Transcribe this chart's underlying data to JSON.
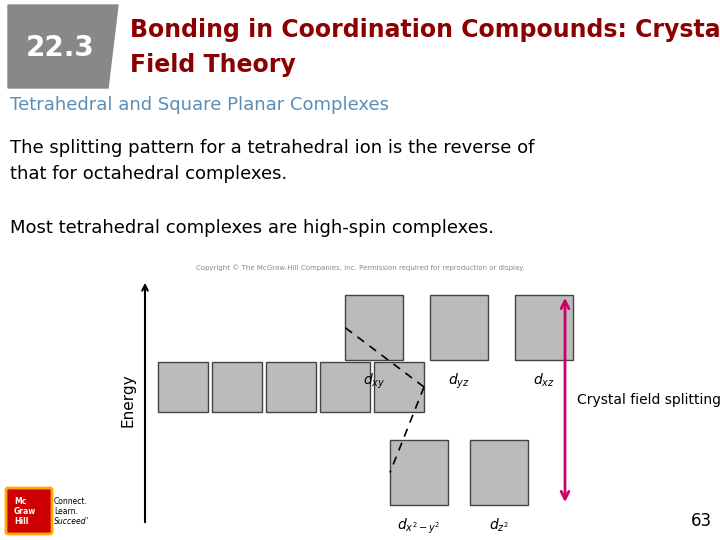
{
  "title_number": "22.3",
  "title_number_bg": "#888888",
  "title_text_line1": "Bonding in Coordination Compounds: Crystal",
  "title_text_line2": "Field Theory",
  "title_color": "#8b0000",
  "subtitle": "Tetrahedral and Square Planar Complexes",
  "subtitle_color": "#5b8db8",
  "body1_line1": "The splitting pattern for a tetrahedral ion is the reverse of",
  "body1_line2": "that for octahedral complexes.",
  "body2": "Most tetrahedral complexes are high-spin complexes.",
  "page_number": "63",
  "bg_color": "#ffffff",
  "box_color": "#bbbbbb",
  "box_edge_color": "#444444",
  "energy_label": "Energy",
  "crystal_field_label": "Crystal field splitting",
  "arrow_color": "#cc0066",
  "copyright": "Copyright © The McGraw-Hill Companies, Inc. Permission required for reproduction or display.",
  "dxy_label": "$d_{xy}$",
  "dyz_label": "$d_{yz}$",
  "dxz_label": "$d_{xz}$",
  "dx2y2_label": "$d_{x^2-y^2}$",
  "dz2_label": "$d_{z^2}$"
}
